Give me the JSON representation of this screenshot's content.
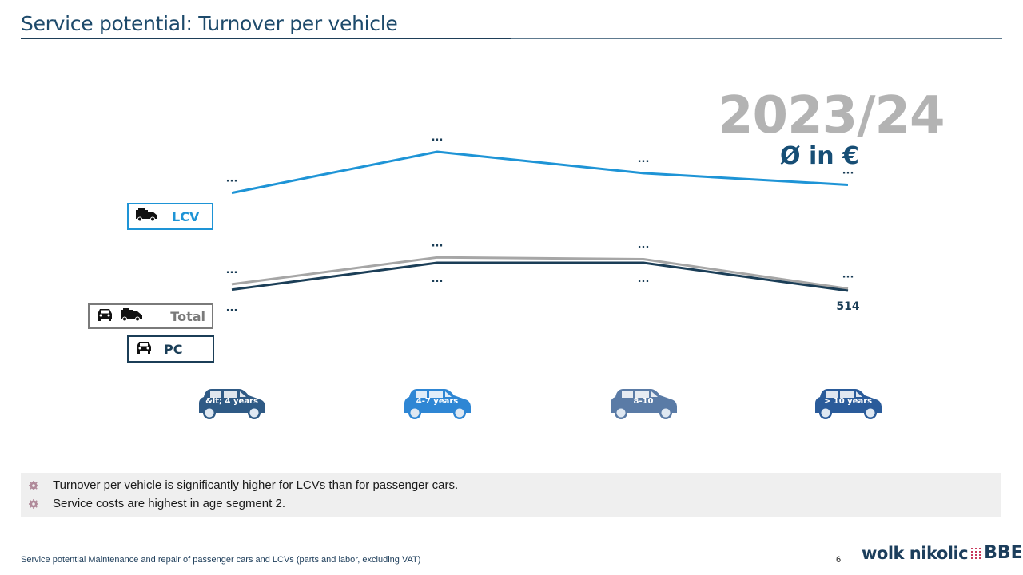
{
  "page": {
    "title": "Service potential: Turnover per vehicle",
    "year_label": "2023/24",
    "unit_label": "Ø in €",
    "footer_text": "Service potential Maintenance and repair of passenger cars and LCVs (parts and labor, excluding VAT)",
    "page_number": "6",
    "logo_text": "wolk nikolic",
    "logo_suffix": "BBE"
  },
  "legend": [
    {
      "key": "lcv",
      "label": "LCV",
      "icons": [
        "van-icon"
      ],
      "color": "#1e94d6"
    },
    {
      "key": "total",
      "label": "Total",
      "icons": [
        "car-icon",
        "van-icon"
      ],
      "color": "#a6a6a6"
    },
    {
      "key": "pc",
      "label": "PC",
      "icons": [
        "car-icon"
      ],
      "color": "#1b3e57"
    }
  ],
  "categories": [
    {
      "label": "&lt; 4 years",
      "color": "#2f5a85"
    },
    {
      "label": "4-7 years",
      "color": "#2e86d4"
    },
    {
      "label": "8-10",
      "color": "#5a7ba6"
    },
    {
      "label": "> 10 years",
      "color": "#2a5b9a"
    }
  ],
  "notes": [
    "Turnover per vehicle is significantly higher for LCVs than for passenger cars.",
    "Service costs are highest in age segment 2."
  ],
  "chart_data": {
    "type": "line",
    "title": "Service potential: Turnover per vehicle",
    "subtitle": "2023/24, Ø in €",
    "categories": [
      "< 4 years",
      "4-7 years",
      "8-10",
      "> 10 years"
    ],
    "xlabel": "",
    "ylabel": "",
    "grid": false,
    "legend_position": "left",
    "y_axis_visible": false,
    "ylim": [
      300,
      1400
    ],
    "series": [
      {
        "name": "LCV",
        "color": "#1e94d6",
        "values": [
          1060,
          1290,
          1170,
          1105
        ],
        "labels": [
          "...",
          "...",
          "...",
          "..."
        ]
      },
      {
        "name": "Total",
        "color": "#a6a6a6",
        "values": [
          550,
          700,
          690,
          525
        ],
        "labels": [
          "...",
          "...",
          "...",
          "..."
        ]
      },
      {
        "name": "PC",
        "color": "#1b3e57",
        "values": [
          520,
          670,
          670,
          514
        ],
        "labels": [
          "...",
          "...",
          "...",
          "514"
        ]
      }
    ],
    "note": "Values other than the PC > 10 years value (514) are masked as '...' in the figure; plotted values are estimated from line positions."
  }
}
